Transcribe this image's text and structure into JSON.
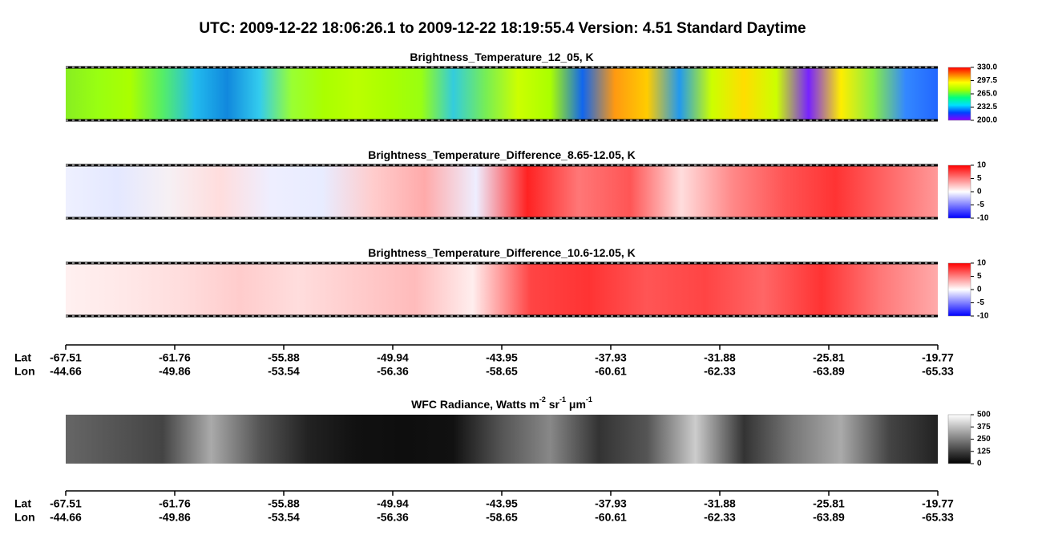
{
  "title": "UTC:  2009-12-22   18:06:26.1  to  2009-12-22   18:19:55.4    Version: 4.51  Standard Daytime",
  "chart_data": [
    {
      "type": "heatmap",
      "title_parts": [
        {
          "text": "Brightness_Temperature_12_05, K",
          "sup": false
        }
      ],
      "colormap": [
        "#8a00ff",
        "#0040ff",
        "#00e0ff",
        "#00ff80",
        "#a0ff00",
        "#ffff00",
        "#ff8000",
        "#ff0000"
      ],
      "clim": [
        200,
        330
      ],
      "cticks": [
        {
          "value": 330,
          "label": "330.0"
        },
        {
          "value": 297.5,
          "label": "297.5"
        },
        {
          "value": 265,
          "label": "265.0"
        },
        {
          "value": 232.5,
          "label": "232.5"
        },
        {
          "value": 200,
          "label": "200.0"
        }
      ]
    },
    {
      "type": "heatmap",
      "title_parts": [
        {
          "text": "Brightness_Temperature_Difference_8.65-12.05, K",
          "sup": false
        }
      ],
      "colormap": [
        "#0000ff",
        "#ffffff",
        "#ff0000"
      ],
      "clim": [
        -10,
        10
      ],
      "cticks": [
        10,
        5,
        0,
        -5,
        -10
      ]
    },
    {
      "type": "heatmap",
      "title_parts": [
        {
          "text": "Brightness_Temperature_Difference_10.6-12.05, K",
          "sup": false
        }
      ],
      "colormap": [
        "#0000ff",
        "#ffffff",
        "#ff0000"
      ],
      "clim": [
        -10,
        10
      ],
      "cticks": [
        10,
        5,
        0,
        -5,
        -10
      ]
    },
    {
      "type": "heatmap",
      "title_parts": [
        {
          "text": "WFC Radiance, Watts m",
          "sup": false
        },
        {
          "text": "-2",
          "sup": true
        },
        {
          "text": " sr",
          "sup": false
        },
        {
          "text": "-1",
          "sup": true
        },
        {
          "text": " μm",
          "sup": false
        },
        {
          "text": "-1",
          "sup": true
        }
      ],
      "colormap": [
        "#000000",
        "#ffffff"
      ],
      "clim": [
        0,
        500
      ],
      "cticks": [
        500,
        375,
        250,
        125,
        0
      ]
    }
  ],
  "geo_axes": [
    {
      "rows": [
        {
          "name": "Lat",
          "labels": [
            -67.51,
            -61.76,
            -55.88,
            -49.94,
            -43.95,
            -37.93,
            -31.88,
            -25.81,
            -19.77
          ]
        },
        {
          "name": "Lon",
          "labels": [
            -44.66,
            -49.86,
            -53.54,
            -56.36,
            -58.65,
            -60.61,
            -62.33,
            -63.89,
            -65.33
          ]
        }
      ]
    },
    {
      "rows": [
        {
          "name": "Lat",
          "labels": [
            -67.51,
            -61.76,
            -55.88,
            -49.94,
            -43.95,
            -37.93,
            -31.88,
            -25.81,
            -19.77
          ]
        },
        {
          "name": "Lon",
          "labels": [
            -44.66,
            -49.86,
            -53.54,
            -56.36,
            -58.65,
            -60.61,
            -62.33,
            -63.89,
            -65.33
          ]
        }
      ]
    }
  ]
}
